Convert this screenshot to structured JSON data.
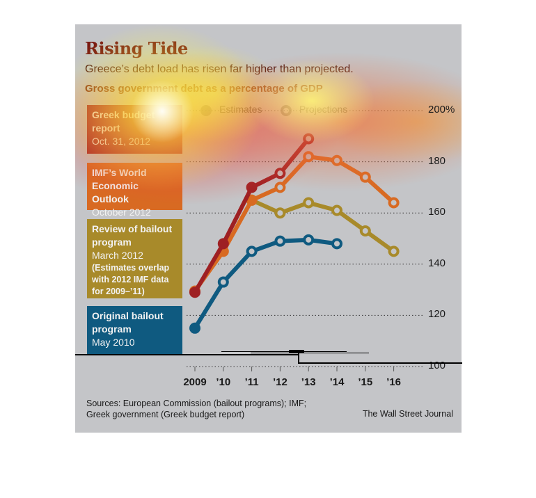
{
  "title": "Rising Tide",
  "subtitle": "Greece’s debt load has risen far higher than projected.",
  "unit_label": "Gross government debt as a percentage of GDP",
  "key": {
    "estimates": "Estimates",
    "projections": "Projections"
  },
  "legend": [
    {
      "bold": "Greek budget report",
      "normal": "Oct. 31, 2012",
      "note": "",
      "color": "#9e2023"
    },
    {
      "bold": "IMF’s World Economic Outlook",
      "normal": "October 2012",
      "note": "",
      "color": "#d86a22"
    },
    {
      "bold": "Review of bailout program",
      "normal": "March 2012",
      "note": "(Estimates overlap with 2012 IMF data for 2009–’11)",
      "color": "#a88a2a"
    },
    {
      "bold": "Original bailout program",
      "normal": "May 2010",
      "note": "",
      "color": "#0f5a80"
    }
  ],
  "footer": {
    "sources_line1": "Sources: European Commission (bailout programs); IMF;",
    "sources_line2": "Greek government (Greek budget report)",
    "credit": "The Wall Street Journal"
  },
  "chart_data": {
    "type": "line",
    "title": "Rising Tide",
    "subtitle": "Greece’s debt load has risen far higher than projected.",
    "ylabel": "Gross government debt as a percentage of GDP",
    "xlabel": "",
    "x": [
      2009,
      2010,
      2011,
      2012,
      2013,
      2014,
      2015,
      2016
    ],
    "x_tick_labels": [
      "2009",
      "’10",
      "’11",
      "’12",
      "’13",
      "’14",
      "’15",
      "’16"
    ],
    "y_tick_labels": [
      "200%",
      "180",
      "160",
      "140",
      "120",
      "100"
    ],
    "y_ticks": [
      200,
      180,
      160,
      140,
      120,
      100
    ],
    "ylim": [
      100,
      200
    ],
    "grid": "horizontal dotted",
    "legend_placement": "left",
    "series": [
      {
        "name": "Greek budget report (Oct. 31, 2012)",
        "color": "#9e2023",
        "x": [
          2009,
          2010,
          2011,
          2012,
          2013
        ],
        "values": [
          129,
          148,
          170,
          175.5,
          189
        ],
        "estimate_through": 2011
      },
      {
        "name": "IMF's World Economic Outlook (October 2012)",
        "color": "#d86a22",
        "x": [
          2009,
          2010,
          2011,
          2012,
          2013,
          2014,
          2015,
          2016
        ],
        "values": [
          129.5,
          145,
          165,
          170,
          182,
          180.5,
          174,
          164
        ],
        "estimate_through": 2011
      },
      {
        "name": "Review of bailout program (March 2012)",
        "color": "#a88a2a",
        "x": [
          2011,
          2012,
          2013,
          2014,
          2015,
          2016
        ],
        "values": [
          165,
          160,
          164,
          161,
          153,
          145
        ],
        "estimate_through": 2011
      },
      {
        "name": "Original bailout program (May 2010)",
        "color": "#0f5a80",
        "x": [
          2009,
          2010,
          2011,
          2012,
          2013,
          2014
        ],
        "values": [
          115,
          133,
          145,
          149,
          149.5,
          148
        ],
        "estimate_through": 2009
      }
    ]
  }
}
